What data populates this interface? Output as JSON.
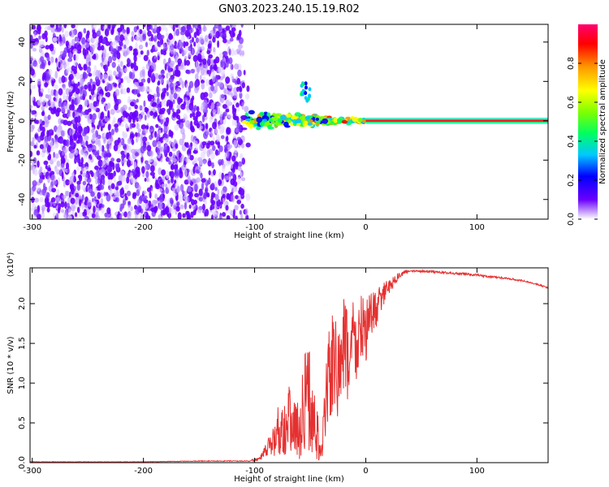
{
  "figure": {
    "title": "GN03.2023.240.15.19.R02"
  },
  "chart_data": [
    {
      "type": "heatmap",
      "xlabel": "Height of straight line (km)",
      "ylabel": "Frequency (Hz)",
      "xlim": [
        -302,
        164
      ],
      "ylim": [
        -50,
        49
      ],
      "xticks": [
        -300,
        -200,
        -100,
        0,
        100
      ],
      "yticks": [
        -40,
        -20,
        0,
        20,
        40
      ],
      "grid": false,
      "colorbar": {
        "label": "Normalized spectral amplitude",
        "range": [
          0.0,
          1.0
        ],
        "ticks": [
          0.0,
          0.2,
          0.4,
          0.6,
          0.8
        ],
        "colormap": "rainbow",
        "colors": [
          "#ffffff",
          "#6a00ff",
          "#0000ff",
          "#00c8ff",
          "#00ff60",
          "#7fff00",
          "#ffff00",
          "#ff9900",
          "#ff0000",
          "#ff0070"
        ]
      },
      "regions": [
        {
          "description": "noise",
          "x": [
            -302,
            -110
          ],
          "y": [
            -50,
            49
          ],
          "amplitude": 0.1
        },
        {
          "description": "signal cluster",
          "x": [
            -110,
            0
          ],
          "y": [
            -8,
            10
          ],
          "amplitude": 0.4
        },
        {
          "description": "steady line",
          "x": [
            0,
            164
          ],
          "y": [
            0,
            0
          ],
          "amplitude": 0.9
        }
      ]
    },
    {
      "type": "line",
      "xlabel": "Height of straight line (km)",
      "ylabel": "SNR (10 * v/v)",
      "scale_label": "(x10⁴)",
      "xlim": [
        -302,
        164
      ],
      "ylim": [
        0,
        2.45
      ],
      "xticks": [
        -300,
        -200,
        -100,
        0,
        100
      ],
      "yticks": [
        "0.0",
        "0.5",
        "1.0",
        "1.5",
        "2.0"
      ],
      "grid": false,
      "series": [
        {
          "color": "#e53030",
          "x": [
            -302,
            -250,
            -200,
            -150,
            -105,
            -95,
            -88,
            -82,
            -78,
            -74,
            -70,
            -65,
            -60,
            -56,
            -52,
            -48,
            -44,
            -40,
            -36,
            -33,
            -30,
            -27,
            -24,
            -20,
            -16,
            -12,
            -8,
            -4,
            0,
            5,
            10,
            15,
            20,
            25,
            30,
            35,
            40,
            50,
            60,
            70,
            80,
            90,
            100,
            110,
            120,
            130,
            140,
            150,
            164
          ],
          "values": [
            0.01,
            0.01,
            0.01,
            0.02,
            0.02,
            0.05,
            0.18,
            0.3,
            0.45,
            0.42,
            0.55,
            0.5,
            0.35,
            0.75,
            0.9,
            0.55,
            0.4,
            0.08,
            0.7,
            1.2,
            1.15,
            1.3,
            1.05,
            1.45,
            1.3,
            1.6,
            1.45,
            1.7,
            1.65,
            1.85,
            1.95,
            2.1,
            2.2,
            2.28,
            2.35,
            2.4,
            2.42,
            2.41,
            2.4,
            2.39,
            2.38,
            2.37,
            2.36,
            2.34,
            2.33,
            2.31,
            2.29,
            2.26,
            2.2
          ],
          "noise": [
            0.003,
            0.003,
            0.003,
            0.004,
            0.006,
            0.03,
            0.12,
            0.22,
            0.35,
            0.35,
            0.45,
            0.45,
            0.35,
            0.6,
            0.7,
            0.55,
            0.4,
            0.08,
            0.55,
            0.7,
            0.7,
            0.7,
            0.7,
            0.65,
            0.65,
            0.55,
            0.5,
            0.45,
            0.4,
            0.3,
            0.25,
            0.15,
            0.1,
            0.08,
            0.05,
            0.03,
            0.02,
            0.015,
            0.015,
            0.015,
            0.015,
            0.015,
            0.015,
            0.012,
            0.012,
            0.012,
            0.01,
            0.01,
            0.01
          ]
        }
      ]
    }
  ]
}
